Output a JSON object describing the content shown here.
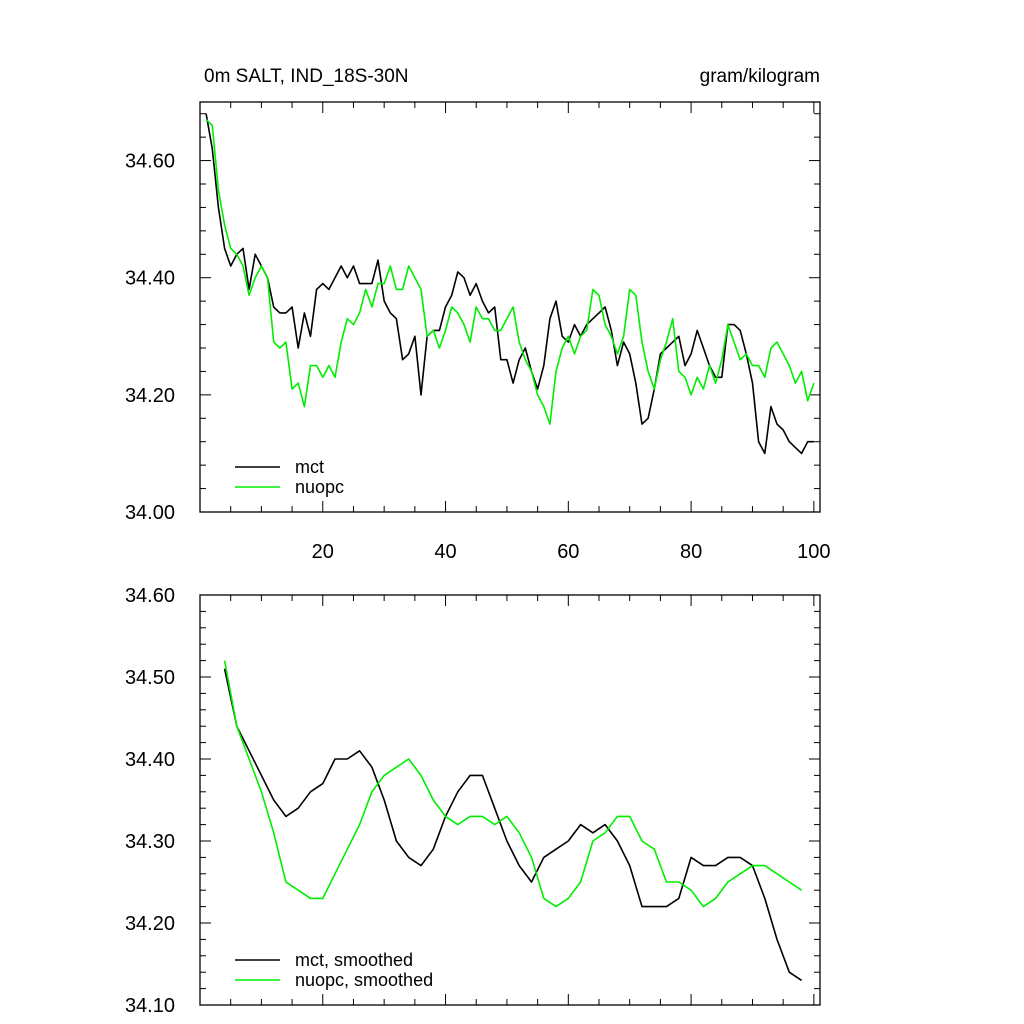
{
  "chart_data": [
    {
      "type": "line",
      "title": "0m SALT, IND_18S-30N",
      "units": "gram/kilogram",
      "xlim": [
        0,
        101
      ],
      "ylim": [
        34.0,
        34.7
      ],
      "xticks": [
        20,
        40,
        60,
        80,
        100
      ],
      "xtick_labels": [
        "20",
        "40",
        "60",
        "80",
        "100"
      ],
      "yticks": [
        34.0,
        34.2,
        34.4,
        34.6
      ],
      "ytick_labels": [
        "34.00",
        "34.20",
        "34.40",
        "34.60"
      ],
      "legend": {
        "position": "bottom-left"
      },
      "series": [
        {
          "name": "mct",
          "color": "#000000",
          "x": [
            1,
            2,
            3,
            4,
            5,
            6,
            7,
            8,
            9,
            10,
            11,
            12,
            13,
            14,
            15,
            16,
            17,
            18,
            19,
            20,
            21,
            22,
            23,
            24,
            25,
            26,
            27,
            28,
            29,
            30,
            31,
            32,
            33,
            34,
            35,
            36,
            37,
            38,
            39,
            40,
            41,
            42,
            43,
            44,
            45,
            46,
            47,
            48,
            49,
            50,
            51,
            52,
            53,
            54,
            55,
            56,
            57,
            58,
            59,
            60,
            61,
            62,
            63,
            64,
            65,
            66,
            67,
            68,
            69,
            70,
            71,
            72,
            73,
            74,
            75,
            76,
            77,
            78,
            79,
            80,
            81,
            82,
            83,
            84,
            85,
            86,
            87,
            88,
            89,
            90,
            91,
            92,
            93,
            94,
            95,
            96,
            97,
            98,
            99,
            100
          ],
          "values": [
            34.68,
            34.62,
            34.52,
            34.45,
            34.42,
            34.44,
            34.45,
            34.38,
            34.44,
            34.42,
            34.4,
            34.35,
            34.34,
            34.34,
            34.35,
            34.28,
            34.34,
            34.3,
            34.38,
            34.39,
            34.38,
            34.4,
            34.42,
            34.4,
            34.42,
            34.39,
            34.39,
            34.39,
            34.43,
            34.36,
            34.34,
            34.33,
            34.26,
            34.27,
            34.3,
            34.2,
            34.3,
            34.31,
            34.31,
            34.35,
            34.37,
            34.41,
            34.4,
            34.37,
            34.39,
            34.36,
            34.34,
            34.35,
            34.26,
            34.26,
            34.22,
            34.26,
            34.28,
            34.24,
            34.21,
            34.25,
            34.33,
            34.36,
            34.3,
            34.29,
            34.32,
            34.3,
            34.32,
            34.33,
            34.34,
            34.35,
            34.31,
            34.25,
            34.29,
            34.27,
            34.22,
            34.15,
            34.16,
            34.21,
            34.27,
            34.28,
            34.29,
            34.3,
            34.25,
            34.27,
            34.31,
            34.28,
            34.25,
            34.23,
            34.23,
            34.32,
            34.32,
            34.31,
            34.27,
            34.22,
            34.12,
            34.1,
            34.18,
            34.15,
            34.14,
            34.12,
            34.11,
            34.1,
            34.12,
            34.12
          ]
        },
        {
          "name": "nuopc",
          "color": "#00ee00",
          "x": [
            1,
            2,
            3,
            4,
            5,
            6,
            7,
            8,
            9,
            10,
            11,
            12,
            13,
            14,
            15,
            16,
            17,
            18,
            19,
            20,
            21,
            22,
            23,
            24,
            25,
            26,
            27,
            28,
            29,
            30,
            31,
            32,
            33,
            34,
            35,
            36,
            37,
            38,
            39,
            40,
            41,
            42,
            43,
            44,
            45,
            46,
            47,
            48,
            49,
            50,
            51,
            52,
            53,
            54,
            55,
            56,
            57,
            58,
            59,
            60,
            61,
            62,
            63,
            64,
            65,
            66,
            67,
            68,
            69,
            70,
            71,
            72,
            73,
            74,
            75,
            76,
            77,
            78,
            79,
            80,
            81,
            82,
            83,
            84,
            85,
            86,
            87,
            88,
            89,
            90,
            91,
            92,
            93,
            94,
            95,
            96,
            97,
            98,
            99,
            100
          ],
          "values": [
            34.67,
            34.66,
            34.55,
            34.49,
            34.45,
            34.44,
            34.42,
            34.37,
            34.4,
            34.42,
            34.4,
            34.29,
            34.28,
            34.29,
            34.21,
            34.22,
            34.18,
            34.25,
            34.25,
            34.23,
            34.25,
            34.23,
            34.29,
            34.33,
            34.32,
            34.34,
            34.38,
            34.35,
            34.39,
            34.39,
            34.42,
            34.38,
            34.38,
            34.42,
            34.4,
            34.38,
            34.3,
            34.31,
            34.28,
            34.31,
            34.35,
            34.34,
            34.32,
            34.29,
            34.35,
            34.33,
            34.33,
            34.31,
            34.31,
            34.33,
            34.35,
            34.29,
            34.26,
            34.24,
            34.2,
            34.18,
            34.15,
            34.24,
            34.28,
            34.3,
            34.27,
            34.3,
            34.31,
            34.38,
            34.37,
            34.32,
            34.3,
            34.27,
            34.3,
            34.38,
            34.37,
            34.29,
            34.24,
            34.21,
            34.26,
            34.29,
            34.33,
            34.24,
            34.23,
            34.2,
            34.23,
            34.21,
            34.25,
            34.22,
            34.26,
            34.32,
            34.29,
            34.26,
            34.27,
            34.25,
            34.25,
            34.23,
            34.28,
            34.29,
            34.27,
            34.25,
            34.22,
            34.24,
            34.19,
            34.22
          ]
        }
      ]
    },
    {
      "type": "line",
      "xlim": [
        0,
        101
      ],
      "ylim": [
        34.1,
        34.6
      ],
      "xticks": [
        20,
        40,
        60,
        80,
        100
      ],
      "yticks": [
        34.1,
        34.2,
        34.3,
        34.4,
        34.5,
        34.6
      ],
      "ytick_labels": [
        "34.10",
        "34.20",
        "34.30",
        "34.40",
        "34.50",
        "34.60"
      ],
      "legend": {
        "position": "bottom-left"
      },
      "series": [
        {
          "name": "mct, smoothed",
          "color": "#000000",
          "x": [
            4,
            6,
            8,
            10,
            12,
            14,
            16,
            18,
            20,
            22,
            24,
            26,
            28,
            30,
            32,
            34,
            36,
            38,
            40,
            42,
            44,
            46,
            48,
            50,
            52,
            54,
            56,
            58,
            60,
            62,
            64,
            66,
            68,
            70,
            72,
            74,
            76,
            78,
            80,
            82,
            84,
            86,
            88,
            90,
            92,
            94,
            96,
            98
          ],
          "values": [
            34.51,
            34.44,
            34.41,
            34.38,
            34.35,
            34.33,
            34.34,
            34.36,
            34.37,
            34.4,
            34.4,
            34.41,
            34.39,
            34.35,
            34.3,
            34.28,
            34.27,
            34.29,
            34.33,
            34.36,
            34.38,
            34.38,
            34.34,
            34.3,
            34.27,
            34.25,
            34.28,
            34.29,
            34.3,
            34.32,
            34.31,
            34.32,
            34.3,
            34.27,
            34.22,
            34.22,
            34.22,
            34.23,
            34.28,
            34.27,
            34.27,
            34.28,
            34.28,
            34.27,
            34.23,
            34.18,
            34.14,
            34.13
          ]
        },
        {
          "name": "nuopc, smoothed",
          "color": "#00ee00",
          "x": [
            4,
            6,
            8,
            10,
            12,
            14,
            16,
            18,
            20,
            22,
            24,
            26,
            28,
            30,
            32,
            34,
            36,
            38,
            40,
            42,
            44,
            46,
            48,
            50,
            52,
            54,
            56,
            58,
            60,
            62,
            64,
            66,
            68,
            70,
            72,
            74,
            76,
            78,
            80,
            82,
            84,
            86,
            88,
            90,
            92,
            94,
            96,
            98
          ],
          "values": [
            34.52,
            34.44,
            34.4,
            34.36,
            34.31,
            34.25,
            34.24,
            34.23,
            34.23,
            34.26,
            34.29,
            34.32,
            34.36,
            34.38,
            34.39,
            34.4,
            34.38,
            34.35,
            34.33,
            34.32,
            34.33,
            34.33,
            34.32,
            34.33,
            34.31,
            34.28,
            34.23,
            34.22,
            34.23,
            34.25,
            34.3,
            34.31,
            34.33,
            34.33,
            34.3,
            34.29,
            34.25,
            34.25,
            34.24,
            34.22,
            34.23,
            34.25,
            34.26,
            34.27,
            34.27,
            34.26,
            34.25,
            34.24
          ]
        }
      ]
    }
  ]
}
